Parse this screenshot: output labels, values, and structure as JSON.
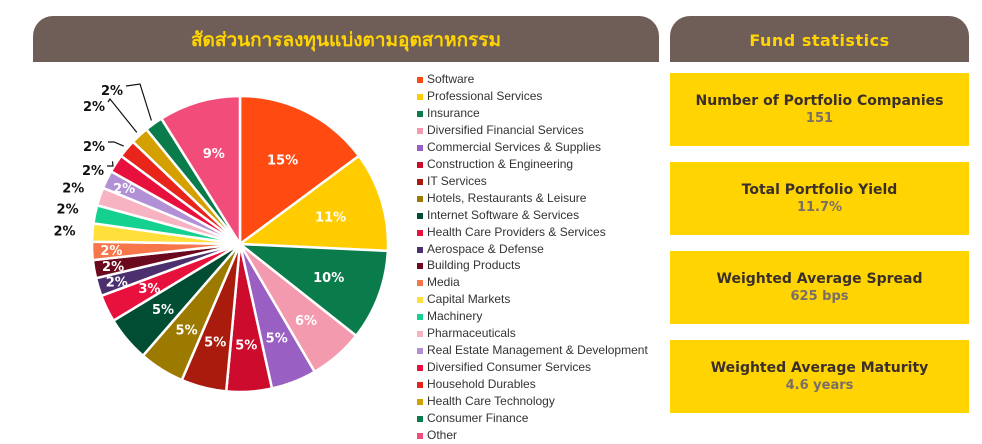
{
  "chart_title": "สัดส่วนการลงทุนแบ่งตามอุตสาหกรรม",
  "stats": {
    "title": "Fund statistics",
    "items": [
      {
        "label": "Number of Portfolio Companies",
        "value": "151"
      },
      {
        "label": "Total Portfolio Yield",
        "value": "11.7%"
      },
      {
        "label": "Weighted Average Spread",
        "value": "625 bps"
      },
      {
        "label": "Weighted Average Maturity",
        "value": "4.6 years"
      }
    ]
  },
  "chart_data": {
    "type": "pie",
    "title": "สัดส่วนการลงทุนแบ่งตามอุตสาหกรรม",
    "unit": "%",
    "legend_position": "right",
    "slices": [
      {
        "name": "Software",
        "value": 15,
        "label": "15%",
        "color": "#ff4a12"
      },
      {
        "name": "Professional Services",
        "value": 11,
        "label": "11%",
        "color": "#ffcc00"
      },
      {
        "name": "Insurance",
        "value": 10,
        "label": "10%",
        "color": "#0a7c4c"
      },
      {
        "name": "Diversified Financial Services",
        "value": 6,
        "label": "6%",
        "color": "#f49aae"
      },
      {
        "name": "Commercial Services & Supplies",
        "value": 5,
        "label": "5%",
        "color": "#9a5fc2"
      },
      {
        "name": "Construction & Engineering",
        "value": 5,
        "label": "5%",
        "color": "#cc0b2d"
      },
      {
        "name": "IT Services",
        "value": 5,
        "label": "5%",
        "color": "#a81b0d"
      },
      {
        "name": "Hotels, Restaurants & Leisure",
        "value": 5,
        "label": "5%",
        "color": "#9c7a00"
      },
      {
        "name": "Internet Software & Services",
        "value": 5,
        "label": "5%",
        "color": "#004d33"
      },
      {
        "name": "Health Care Providers & Services",
        "value": 3,
        "label": "3%",
        "color": "#e8103c"
      },
      {
        "name": "Aerospace & Defense",
        "value": 2,
        "label": "2%",
        "color": "#4b2f6e"
      },
      {
        "name": "Building Products",
        "value": 2,
        "label": "2%",
        "color": "#6b0a1e"
      },
      {
        "name": "Media",
        "value": 2,
        "label": "2%",
        "color": "#f7764a"
      },
      {
        "name": "Capital Markets",
        "value": 2,
        "label": "2%",
        "color": "#ffdf3a"
      },
      {
        "name": "Machinery",
        "value": 2,
        "label": "2%",
        "color": "#14d18f"
      },
      {
        "name": "Pharmaceuticals",
        "value": 2,
        "label": "2%",
        "color": "#f7b3c2"
      },
      {
        "name": "Real Estate Management & Development",
        "value": 2,
        "label": "2%",
        "color": "#b290d6"
      },
      {
        "name": "Diversified Consumer Services",
        "value": 2,
        "label": "2%",
        "color": "#e8103c"
      },
      {
        "name": "Household Durables",
        "value": 2,
        "label": "2%",
        "color": "#e8241b"
      },
      {
        "name": "Health Care Technology",
        "value": 2,
        "label": "2%",
        "color": "#d4a000"
      },
      {
        "name": "Consumer Finance",
        "value": 2,
        "label": "2%",
        "color": "#0a7c4c"
      },
      {
        "name": "Other",
        "value": 9,
        "label": "9%",
        "color": "#f24d7a"
      }
    ]
  }
}
